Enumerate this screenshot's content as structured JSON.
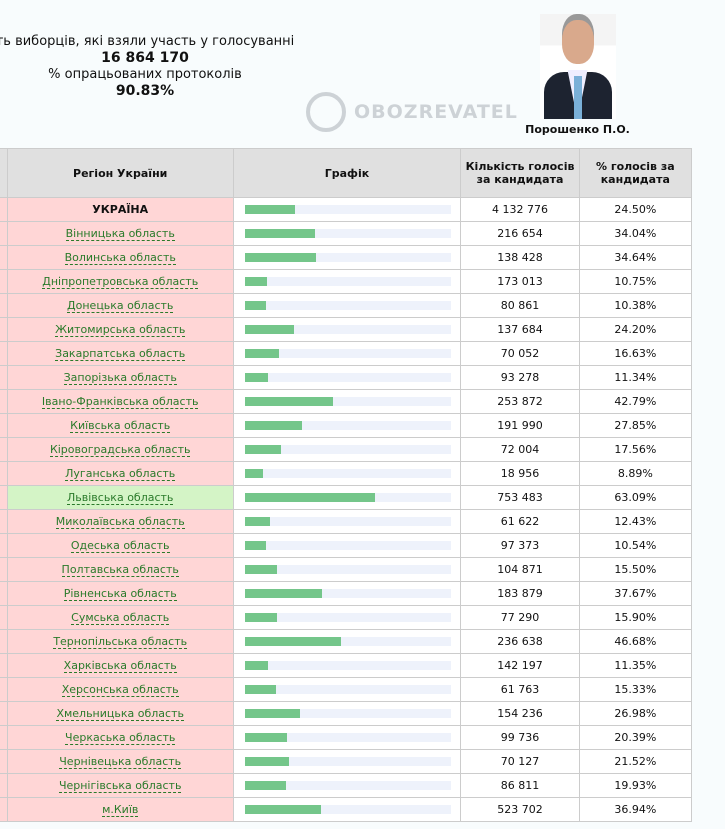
{
  "summary": {
    "turnout_label": "ть виборців, які взяли участь у голосуванні",
    "turnout_value": "16 864 170",
    "protocols_label": "% опрацьованих протоколів",
    "protocols_value": "90.83%"
  },
  "candidate": {
    "name": "Порошенко П.О."
  },
  "table": {
    "headers": {
      "region": "Регіон України",
      "graph": "Графік",
      "votes": "Кількість голосів за кандидата",
      "percent": "% голосів за кандидата"
    },
    "rows": [
      {
        "region": "УКРАЇНА",
        "votes": "4 132 776",
        "percent": "24.50%",
        "pct": 24.5
      },
      {
        "region": "Вінницька область",
        "votes": "216 654",
        "percent": "34.04%",
        "pct": 34.04
      },
      {
        "region": "Волинська область",
        "votes": "138 428",
        "percent": "34.64%",
        "pct": 34.64
      },
      {
        "region": "Дніпропетровська область",
        "votes": "173 013",
        "percent": "10.75%",
        "pct": 10.75
      },
      {
        "region": "Донецька область",
        "votes": "80 861",
        "percent": "10.38%",
        "pct": 10.38
      },
      {
        "region": "Житомирська область",
        "votes": "137 684",
        "percent": "24.20%",
        "pct": 24.2
      },
      {
        "region": "Закарпатська область",
        "votes": "70 052",
        "percent": "16.63%",
        "pct": 16.63
      },
      {
        "region": "Запорізька область",
        "votes": "93 278",
        "percent": "11.34%",
        "pct": 11.34
      },
      {
        "region": "Івано-Франківська область",
        "votes": "253 872",
        "percent": "42.79%",
        "pct": 42.79
      },
      {
        "region": "Київська область",
        "votes": "191 990",
        "percent": "27.85%",
        "pct": 27.85
      },
      {
        "region": "Кіровоградська область",
        "votes": "72 004",
        "percent": "17.56%",
        "pct": 17.56
      },
      {
        "region": "Луганська область",
        "votes": "18 956",
        "percent": "8.89%",
        "pct": 8.89
      },
      {
        "region": "Львівська область",
        "votes": "753 483",
        "percent": "63.09%",
        "pct": 63.09
      },
      {
        "region": "Миколаївська область",
        "votes": "61 622",
        "percent": "12.43%",
        "pct": 12.43
      },
      {
        "region": "Одеська область",
        "votes": "97 373",
        "percent": "10.54%",
        "pct": 10.54
      },
      {
        "region": "Полтавська область",
        "votes": "104 871",
        "percent": "15.50%",
        "pct": 15.5
      },
      {
        "region": "Рівненська область",
        "votes": "183 879",
        "percent": "37.67%",
        "pct": 37.67
      },
      {
        "region": "Сумська область",
        "votes": "77 290",
        "percent": "15.90%",
        "pct": 15.9
      },
      {
        "region": "Тернопільська область",
        "votes": "236 638",
        "percent": "46.68%",
        "pct": 46.68
      },
      {
        "region": "Харківська область",
        "votes": "142 197",
        "percent": "11.35%",
        "pct": 11.35
      },
      {
        "region": "Херсонська область",
        "votes": "61 763",
        "percent": "15.33%",
        "pct": 15.33
      },
      {
        "region": "Хмельницька область",
        "votes": "154 236",
        "percent": "26.98%",
        "pct": 26.98
      },
      {
        "region": "Черкаська область",
        "votes": "99 736",
        "percent": "20.39%",
        "pct": 20.39
      },
      {
        "region": "Чернівецька область",
        "votes": "70 127",
        "percent": "21.52%",
        "pct": 21.52
      },
      {
        "region": "Чернігівська область",
        "votes": "86 811",
        "percent": "19.93%",
        "pct": 19.93
      },
      {
        "region": "м.Київ",
        "votes": "523 702",
        "percent": "36.94%",
        "pct": 36.94
      }
    ]
  },
  "watermark": "OBOZREVATEL"
}
